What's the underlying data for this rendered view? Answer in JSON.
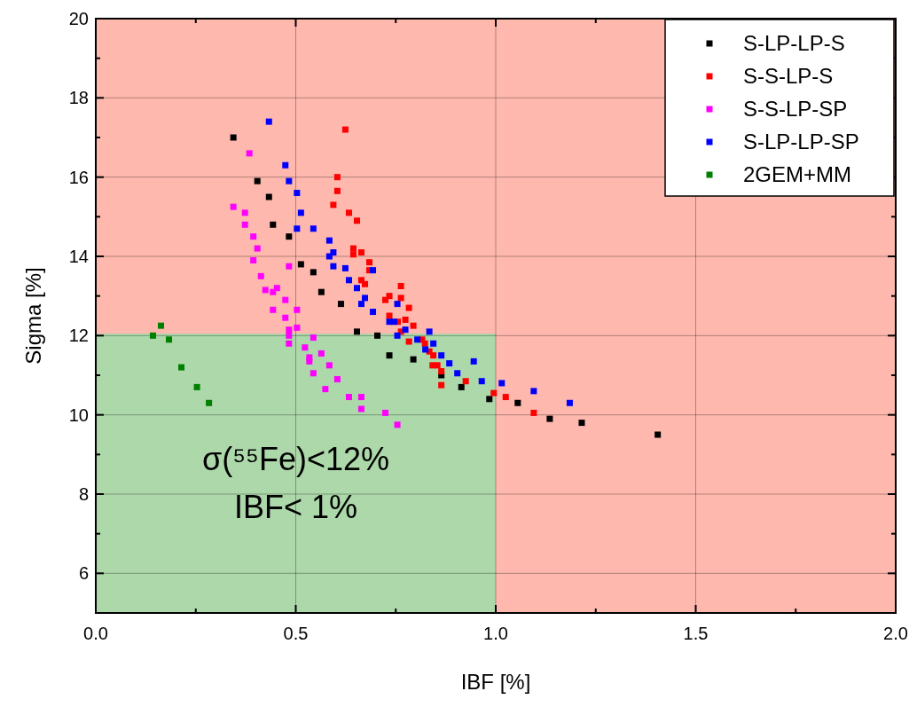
{
  "chart_data": {
    "type": "scatter",
    "xlabel": "IBF [%]",
    "ylabel": "Sigma [%]",
    "xlim": [
      0,
      2
    ],
    "ylim": [
      5,
      20
    ],
    "xticks": [
      {
        "value": 0,
        "label": "0.0"
      },
      0.5,
      {
        "value": 1,
        "label": "1.0"
      },
      1.5,
      {
        "value": 2,
        "label": "2.0"
      }
    ],
    "yticks": [
      6,
      8,
      10,
      12,
      14,
      16,
      18,
      20
    ],
    "grid": true,
    "legend": "top right",
    "marker": "square",
    "bands": [
      {
        "axis": "x",
        "from": 0,
        "to": 1,
        "color": "#acd8aa"
      },
      {
        "axis": "y",
        "from": 12.05,
        "to": 20,
        "color": "#feb8ad"
      },
      {
        "axis": "x",
        "from": 1,
        "to": 2,
        "color": "#feb8ad"
      }
    ],
    "annotations": [
      "σ(⁵⁵Fe)<12%",
      "IBF< 1%"
    ],
    "series": [
      {
        "name": "S-LP-LP-S",
        "color": "#000000",
        "x": [
          0.344,
          0.404,
          0.433,
          0.443,
          0.483,
          0.513,
          0.544,
          0.564,
          0.613,
          0.653,
          0.704,
          0.734,
          0.794,
          0.864,
          0.914,
          0.984,
          1.055,
          1.135,
          1.215,
          1.405
        ],
        "values": [
          17.0,
          15.9,
          15.5,
          14.8,
          14.5,
          13.8,
          13.6,
          13.1,
          12.8,
          12.1,
          12.0,
          11.5,
          11.4,
          11.0,
          10.7,
          10.4,
          10.3,
          9.9,
          9.8,
          9.5
        ]
      },
      {
        "name": "S-S-LP-S",
        "color": "#ff0000",
        "x": [
          0.624,
          0.604,
          0.604,
          0.594,
          0.633,
          0.653,
          0.644,
          0.644,
          0.664,
          0.684,
          0.684,
          0.664,
          0.673,
          0.763,
          0.734,
          0.763,
          0.724,
          0.783,
          0.734,
          0.774,
          0.755,
          0.794,
          0.763,
          0.783,
          0.823,
          0.816,
          0.834,
          0.844,
          0.842,
          0.854,
          0.864,
          0.864,
          0.925,
          0.995,
          1.025,
          1.095
        ],
        "values": [
          17.2,
          16.0,
          15.65,
          15.3,
          15.1,
          14.9,
          14.2,
          14.05,
          14.1,
          13.85,
          13.65,
          13.4,
          13.3,
          13.25,
          13.0,
          12.95,
          12.9,
          12.7,
          12.5,
          12.4,
          12.35,
          12.25,
          12.1,
          11.85,
          11.8,
          11.9,
          11.6,
          11.5,
          11.25,
          11.25,
          11.1,
          10.75,
          10.85,
          10.55,
          10.45,
          10.05
        ]
      },
      {
        "name": "S-S-LP-SP",
        "color": "#ff00ff",
        "x": [
          0.384,
          0.344,
          0.373,
          0.373,
          0.394,
          0.404,
          0.394,
          0.483,
          0.413,
          0.424,
          0.443,
          0.453,
          0.474,
          0.443,
          0.503,
          0.474,
          0.503,
          0.483,
          0.483,
          0.483,
          0.523,
          0.544,
          0.534,
          0.534,
          0.564,
          0.584,
          0.544,
          0.604,
          0.574,
          0.633,
          0.664,
          0.664,
          0.724,
          0.754
        ],
        "values": [
          16.6,
          15.25,
          15.1,
          14.8,
          14.5,
          14.2,
          13.9,
          13.75,
          13.5,
          13.15,
          13.1,
          13.2,
          12.9,
          12.65,
          12.65,
          12.45,
          12.2,
          12.15,
          12.0,
          11.8,
          11.7,
          11.95,
          11.45,
          11.35,
          11.55,
          11.25,
          11.05,
          10.9,
          10.65,
          10.45,
          10.45,
          10.15,
          10.05,
          9.75
        ]
      },
      {
        "name": "S-LP-LP-SP",
        "color": "#0000ff",
        "x": [
          0.433,
          0.474,
          0.483,
          0.503,
          0.513,
          0.503,
          0.544,
          0.584,
          0.594,
          0.584,
          0.594,
          0.624,
          0.633,
          0.653,
          0.673,
          0.664,
          0.693,
          0.693,
          0.754,
          0.734,
          0.746,
          0.774,
          0.834,
          0.754,
          0.804,
          0.844,
          0.824,
          0.864,
          0.884,
          0.904,
          0.945,
          0.965,
          1.015,
          1.095,
          1.185
        ],
        "values": [
          17.4,
          16.3,
          15.9,
          15.6,
          15.1,
          14.7,
          14.7,
          14.4,
          14.1,
          14.0,
          13.75,
          13.7,
          13.4,
          13.2,
          12.95,
          12.8,
          13.65,
          12.6,
          12.8,
          12.35,
          12.35,
          12.15,
          12.1,
          12.0,
          11.9,
          11.8,
          11.65,
          11.5,
          11.3,
          11.05,
          11.35,
          10.85,
          10.8,
          10.6,
          10.3
        ]
      },
      {
        "name": "2GEM+MM",
        "color": "#008000",
        "x": [
          0.163,
          0.143,
          0.183,
          0.214,
          0.253,
          0.283
        ],
        "values": [
          12.25,
          12.0,
          11.9,
          11.2,
          10.7,
          10.3
        ]
      }
    ]
  }
}
